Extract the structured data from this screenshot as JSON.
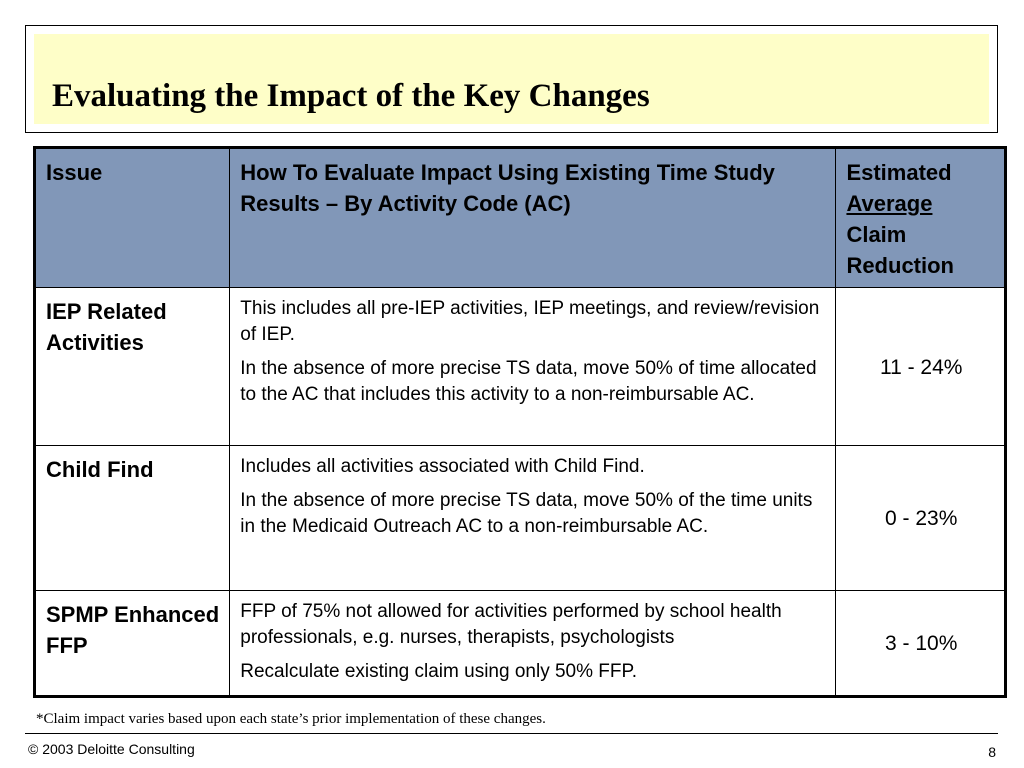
{
  "slide": {
    "title": "Evaluating the Impact of the Key Changes",
    "footnote": "*Claim impact varies based upon each state’s prior implementation of these changes.",
    "copyright": "© 2003 Deloitte Consulting",
    "page_number": "8"
  },
  "table": {
    "headers": {
      "issue": "Issue",
      "how": "How To Evaluate Impact Using Existing Time Study Results – By Activity Code (AC)",
      "estimated_pre": "Estimated",
      "estimated_underlined": "Average",
      "estimated_post": "Claim Reduction"
    },
    "rows": [
      {
        "issue": "IEP Related Activities",
        "desc1": "This includes all pre-IEP activities, IEP meetings, and review/revision of IEP.",
        "desc2": "In the absence of more precise TS data, move 50% of time allocated to the AC that includes this activity to a non-reimbursable AC.",
        "reduction": "11 - 24%"
      },
      {
        "issue": "Child Find",
        "desc1": "Includes all activities associated with Child Find.",
        "desc2": "In the absence of more precise TS data, move 50% of the time units in the Medicaid Outreach AC to a non-reimbursable AC.",
        "reduction": "0 - 23%"
      },
      {
        "issue": "SPMP Enhanced FFP",
        "desc1": "FFP of 75% not allowed for activities performed by school health professionals, e.g. nurses, therapists, psychologists",
        "desc2": "Recalculate existing claim using only 50% FFP.",
        "reduction": "3 - 10%"
      }
    ]
  },
  "colors": {
    "title_background": "#fefec8",
    "header_background": "#8197b8"
  }
}
